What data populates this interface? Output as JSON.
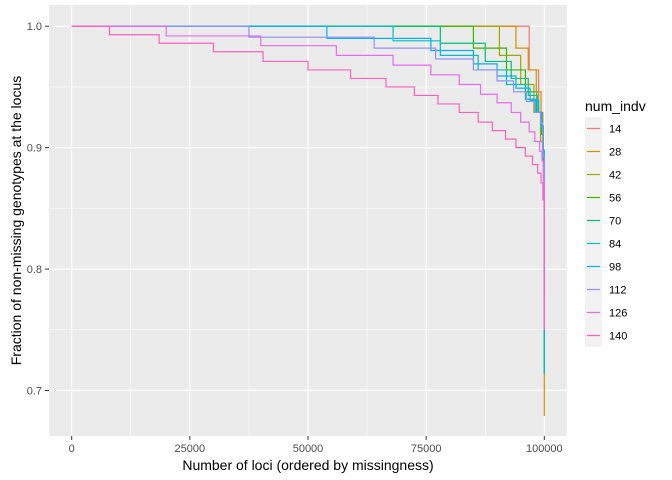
{
  "chart_data": {
    "type": "line",
    "step": true,
    "xlabel": "Number of loci (ordered by missingness)",
    "ylabel": "Fraction of non-missing genotypes at the locus",
    "xlim": [
      -4800,
      104800
    ],
    "ylim": [
      0.6625,
      1.0175
    ],
    "x_ticks": [
      0,
      25000,
      50000,
      75000,
      100000
    ],
    "x_tick_labels": [
      "0",
      "25000",
      "50000",
      "75000",
      "100000"
    ],
    "y_ticks": [
      0.7,
      0.8,
      0.9,
      1.0
    ],
    "y_tick_labels": [
      "0.7",
      "0.8",
      "0.9",
      "1.0"
    ],
    "legend_title": "num_indv",
    "legend_position": "right",
    "grid": true,
    "colors": {
      "panel": "#ebebeb",
      "grid": "#ffffff",
      "text": "#000000",
      "tick_text": "#4d4d4d"
    },
    "series": [
      {
        "name": "14",
        "color": "#F8766D",
        "points": [
          [
            0,
            1.0
          ],
          [
            96800,
            1.0
          ],
          [
            96800,
            0.964
          ],
          [
            98800,
            0.964
          ],
          [
            98800,
            0.929
          ],
          [
            99600,
            0.929
          ],
          [
            99600,
            0.893
          ],
          [
            99900,
            0.893
          ],
          [
            99900,
            0.857
          ],
          [
            100000,
            0.857
          ],
          [
            100000,
            0.75
          ]
        ]
      },
      {
        "name": "28",
        "color": "#D89000",
        "points": [
          [
            0,
            1.0
          ],
          [
            94000,
            1.0
          ],
          [
            94000,
            0.982
          ],
          [
            96600,
            0.982
          ],
          [
            96600,
            0.964
          ],
          [
            98300,
            0.964
          ],
          [
            98300,
            0.946
          ],
          [
            99300,
            0.946
          ],
          [
            99300,
            0.929
          ],
          [
            99700,
            0.929
          ],
          [
            99700,
            0.893
          ],
          [
            99900,
            0.893
          ],
          [
            99900,
            0.857
          ],
          [
            100000,
            0.857
          ],
          [
            100000,
            0.679
          ]
        ]
      },
      {
        "name": "42",
        "color": "#A3A500",
        "points": [
          [
            0,
            1.0
          ],
          [
            90500,
            1.0
          ],
          [
            90500,
            0.976
          ],
          [
            95000,
            0.976
          ],
          [
            95000,
            0.952
          ],
          [
            97800,
            0.952
          ],
          [
            97800,
            0.929
          ],
          [
            99200,
            0.929
          ],
          [
            99200,
            0.905
          ],
          [
            99800,
            0.905
          ],
          [
            99800,
            0.881
          ],
          [
            100000,
            0.881
          ],
          [
            100000,
            0.714
          ]
        ]
      },
      {
        "name": "56",
        "color": "#39B600",
        "points": [
          [
            0,
            1.0
          ],
          [
            85000,
            1.0
          ],
          [
            85000,
            0.982
          ],
          [
            92000,
            0.982
          ],
          [
            92000,
            0.964
          ],
          [
            96000,
            0.964
          ],
          [
            96000,
            0.946
          ],
          [
            98400,
            0.946
          ],
          [
            98400,
            0.929
          ],
          [
            99400,
            0.929
          ],
          [
            99400,
            0.911
          ],
          [
            99800,
            0.911
          ],
          [
            99800,
            0.893
          ],
          [
            100000,
            0.893
          ],
          [
            100000,
            0.714
          ]
        ]
      },
      {
        "name": "70",
        "color": "#00BF7D",
        "points": [
          [
            0,
            1.0
          ],
          [
            78000,
            1.0
          ],
          [
            78000,
            0.986
          ],
          [
            87500,
            0.986
          ],
          [
            87500,
            0.971
          ],
          [
            93000,
            0.971
          ],
          [
            93000,
            0.957
          ],
          [
            96600,
            0.957
          ],
          [
            96600,
            0.943
          ],
          [
            98500,
            0.943
          ],
          [
            98500,
            0.929
          ],
          [
            99400,
            0.929
          ],
          [
            99400,
            0.914
          ],
          [
            99800,
            0.914
          ],
          [
            99800,
            0.886
          ],
          [
            100000,
            0.886
          ],
          [
            100000,
            0.714
          ]
        ]
      },
      {
        "name": "84",
        "color": "#00BFC4",
        "points": [
          [
            0,
            1.0
          ],
          [
            68000,
            1.0
          ],
          [
            68000,
            0.988
          ],
          [
            78000,
            0.988
          ],
          [
            78000,
            0.976
          ],
          [
            86000,
            0.976
          ],
          [
            86000,
            0.964
          ],
          [
            92000,
            0.964
          ],
          [
            92000,
            0.952
          ],
          [
            96000,
            0.952
          ],
          [
            96000,
            0.94
          ],
          [
            98200,
            0.94
          ],
          [
            98200,
            0.929
          ],
          [
            99400,
            0.929
          ],
          [
            99400,
            0.917
          ],
          [
            99800,
            0.917
          ],
          [
            99800,
            0.893
          ],
          [
            100000,
            0.893
          ],
          [
            100000,
            0.714
          ]
        ]
      },
      {
        "name": "98",
        "color": "#00B0F6",
        "points": [
          [
            0,
            1.0
          ],
          [
            54000,
            1.0
          ],
          [
            54000,
            0.99
          ],
          [
            76000,
            0.99
          ],
          [
            76000,
            0.98
          ],
          [
            85000,
            0.98
          ],
          [
            85000,
            0.969
          ],
          [
            90000,
            0.969
          ],
          [
            90000,
            0.959
          ],
          [
            94000,
            0.959
          ],
          [
            94000,
            0.949
          ],
          [
            97000,
            0.949
          ],
          [
            97000,
            0.939
          ],
          [
            98800,
            0.939
          ],
          [
            98800,
            0.929
          ],
          [
            99500,
            0.929
          ],
          [
            99500,
            0.918
          ],
          [
            99800,
            0.918
          ],
          [
            99800,
            0.898
          ],
          [
            100000,
            0.898
          ],
          [
            100000,
            0.745
          ]
        ]
      },
      {
        "name": "112",
        "color": "#9590FF",
        "points": [
          [
            0,
            1.0
          ],
          [
            37500,
            1.0
          ],
          [
            37500,
            0.991
          ],
          [
            64000,
            0.991
          ],
          [
            64000,
            0.982
          ],
          [
            77000,
            0.982
          ],
          [
            77000,
            0.973
          ],
          [
            85000,
            0.973
          ],
          [
            85000,
            0.964
          ],
          [
            90000,
            0.964
          ],
          [
            90000,
            0.955
          ],
          [
            93500,
            0.955
          ],
          [
            93500,
            0.946
          ],
          [
            96200,
            0.946
          ],
          [
            96200,
            0.938
          ],
          [
            98000,
            0.938
          ],
          [
            98000,
            0.929
          ],
          [
            99200,
            0.929
          ],
          [
            99200,
            0.92
          ],
          [
            99700,
            0.92
          ],
          [
            99700,
            0.893
          ],
          [
            100000,
            0.893
          ],
          [
            100000,
            0.75
          ]
        ]
      },
      {
        "name": "126",
        "color": "#E76BF3",
        "points": [
          [
            0,
            1.0
          ],
          [
            20000,
            1.0
          ],
          [
            20000,
            0.992
          ],
          [
            40000,
            0.992
          ],
          [
            40000,
            0.984
          ],
          [
            56000,
            0.984
          ],
          [
            56000,
            0.976
          ],
          [
            68000,
            0.976
          ],
          [
            68000,
            0.968
          ],
          [
            76000,
            0.968
          ],
          [
            76000,
            0.96
          ],
          [
            82000,
            0.96
          ],
          [
            82000,
            0.952
          ],
          [
            86500,
            0.952
          ],
          [
            86500,
            0.944
          ],
          [
            90000,
            0.944
          ],
          [
            90000,
            0.937
          ],
          [
            93000,
            0.937
          ],
          [
            93000,
            0.929
          ],
          [
            95000,
            0.929
          ],
          [
            95000,
            0.921
          ],
          [
            96800,
            0.921
          ],
          [
            96800,
            0.913
          ],
          [
            98000,
            0.913
          ],
          [
            98000,
            0.905
          ],
          [
            99000,
            0.905
          ],
          [
            99000,
            0.897
          ],
          [
            99500,
            0.897
          ],
          [
            99500,
            0.889
          ],
          [
            99800,
            0.889
          ],
          [
            99800,
            0.873
          ],
          [
            100000,
            0.873
          ],
          [
            100000,
            0.778
          ]
        ]
      },
      {
        "name": "140",
        "color": "#FF62BC",
        "points": [
          [
            0,
            1.0
          ],
          [
            8000,
            1.0
          ],
          [
            8000,
            0.993
          ],
          [
            18500,
            0.993
          ],
          [
            18500,
            0.986
          ],
          [
            30000,
            0.986
          ],
          [
            30000,
            0.979
          ],
          [
            40500,
            0.979
          ],
          [
            40500,
            0.971
          ],
          [
            50000,
            0.971
          ],
          [
            50000,
            0.964
          ],
          [
            59000,
            0.964
          ],
          [
            59000,
            0.957
          ],
          [
            66500,
            0.957
          ],
          [
            66500,
            0.95
          ],
          [
            72500,
            0.95
          ],
          [
            72500,
            0.943
          ],
          [
            77500,
            0.943
          ],
          [
            77500,
            0.936
          ],
          [
            82000,
            0.936
          ],
          [
            82000,
            0.929
          ],
          [
            86000,
            0.929
          ],
          [
            86000,
            0.921
          ],
          [
            89000,
            0.921
          ],
          [
            89000,
            0.914
          ],
          [
            91800,
            0.914
          ],
          [
            91800,
            0.907
          ],
          [
            94000,
            0.907
          ],
          [
            94000,
            0.9
          ],
          [
            96000,
            0.9
          ],
          [
            96000,
            0.893
          ],
          [
            97500,
            0.893
          ],
          [
            97500,
            0.886
          ],
          [
            98600,
            0.886
          ],
          [
            98600,
            0.879
          ],
          [
            99300,
            0.879
          ],
          [
            99300,
            0.871
          ],
          [
            99700,
            0.871
          ],
          [
            99700,
            0.857
          ],
          [
            100000,
            0.857
          ],
          [
            100000,
            0.75
          ]
        ]
      }
    ]
  }
}
